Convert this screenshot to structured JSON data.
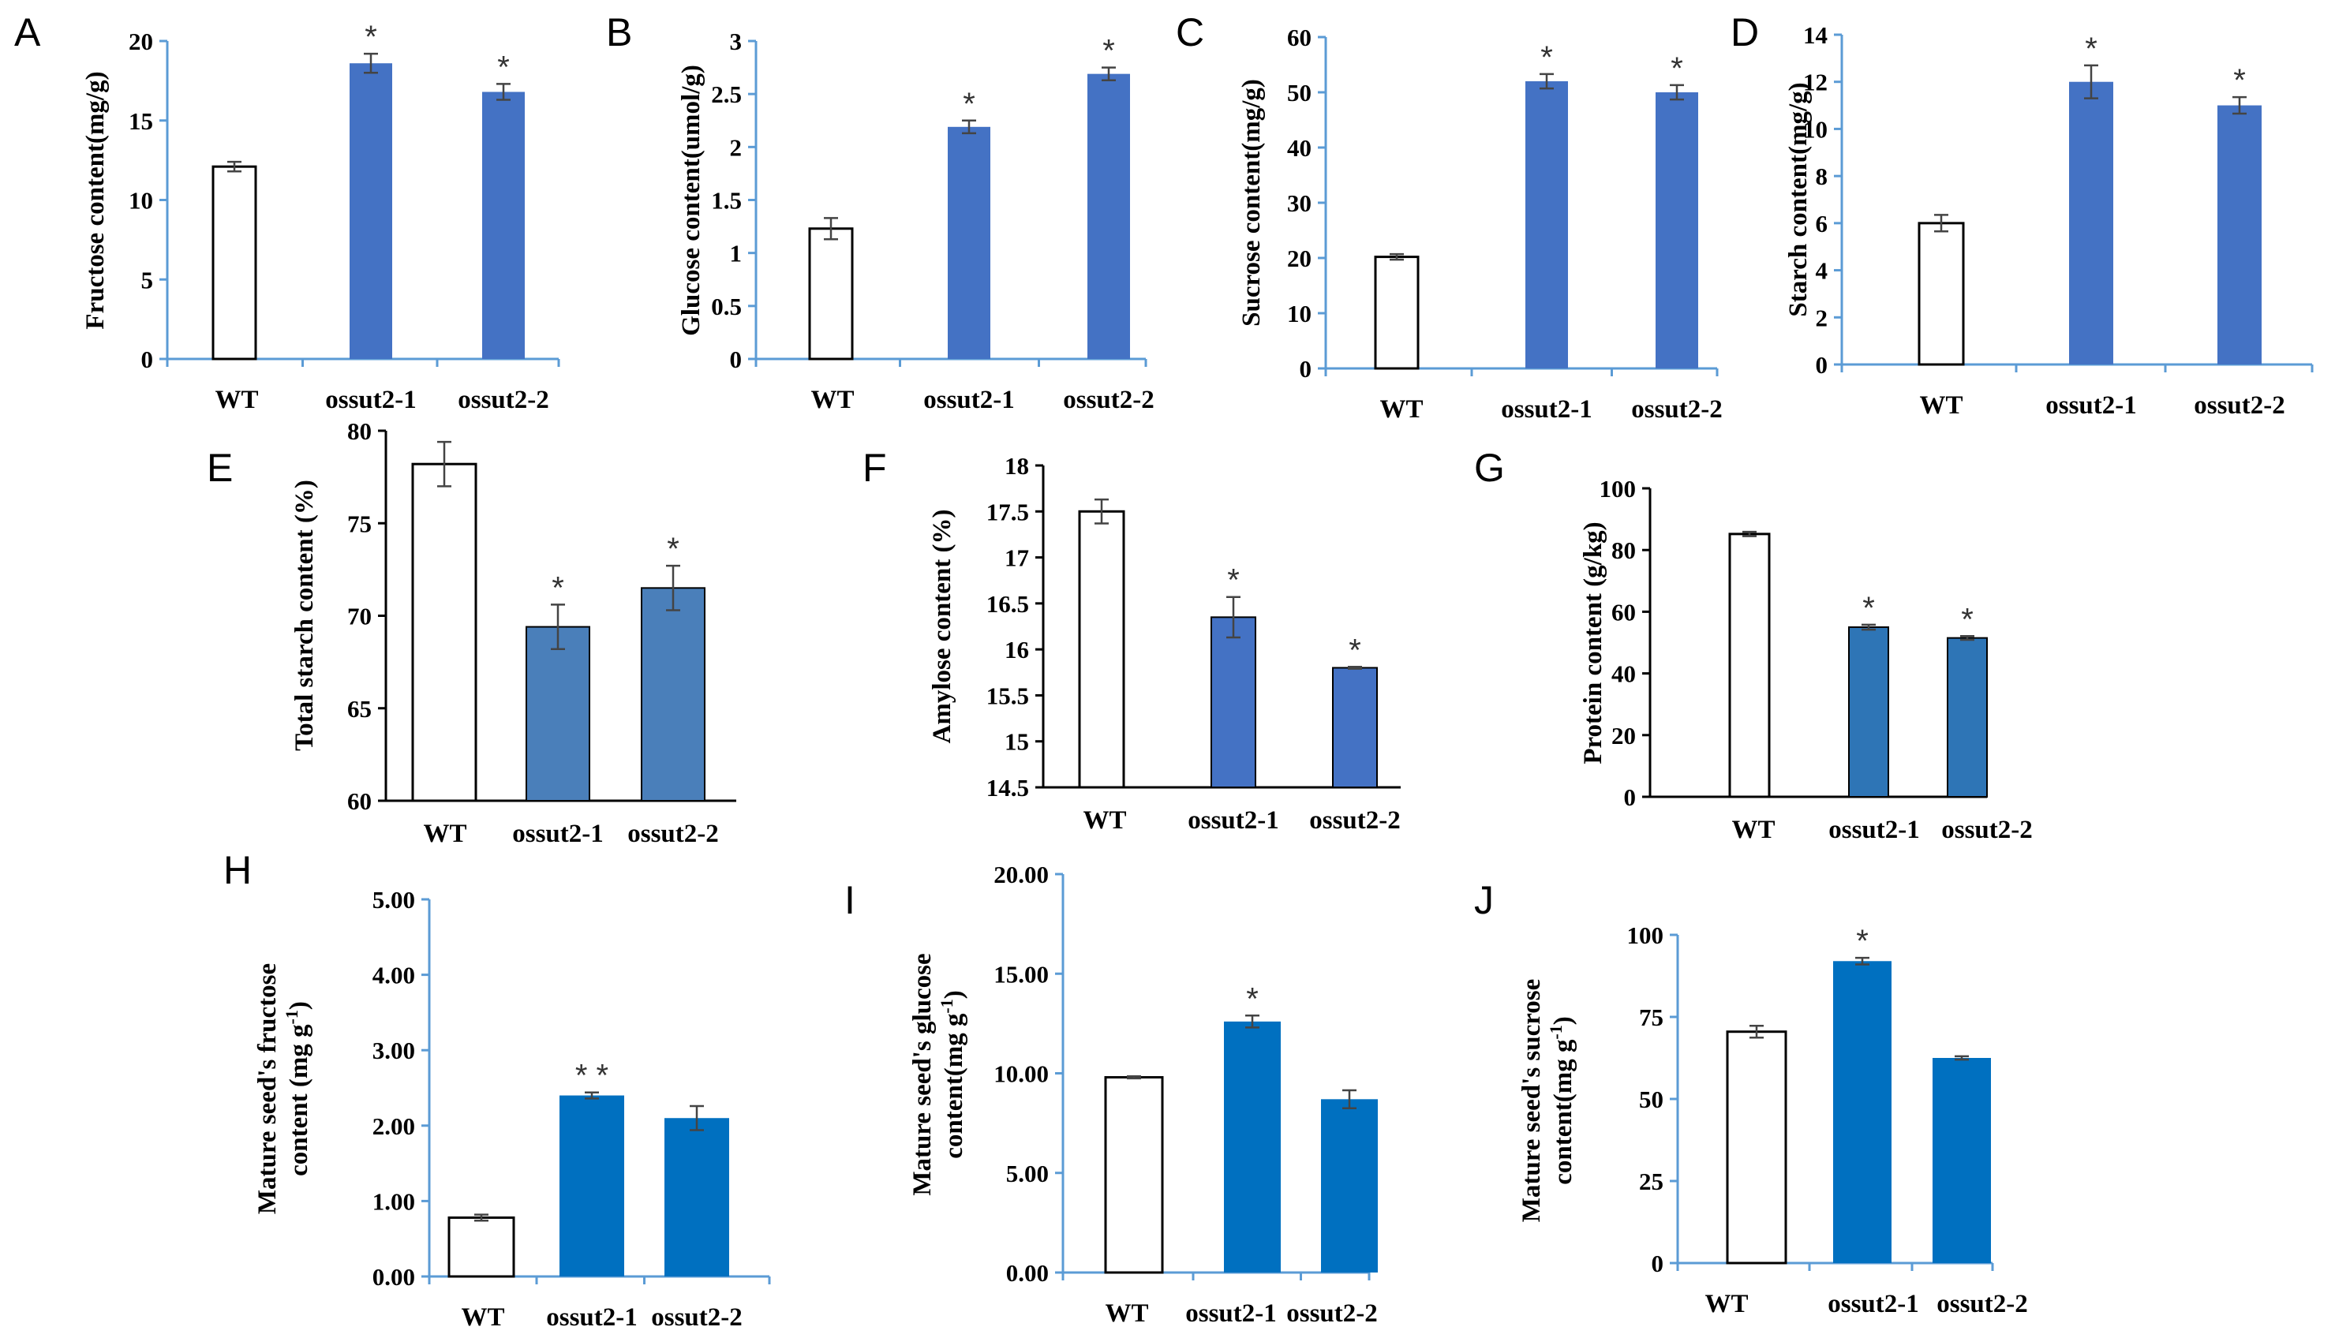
{
  "colors": {
    "wt_fill": "#ffffff",
    "mutant_fill_a": "#4472c4",
    "mutant_fill_e": "#4a7fba",
    "mutant_fill_g": "#2e75b6",
    "mutant_fill_h": "#0070c0",
    "axis_blue": "#5b9bd5",
    "axis_black": "#000000"
  },
  "chart_data": [
    {
      "panel": "A",
      "type": "bar",
      "ylabel": "Fructose content(mg/g)",
      "ylim": [
        0,
        20
      ],
      "yticks": [
        "0",
        "5",
        "10",
        "15",
        "20"
      ],
      "categories": [
        "WT",
        "ossut2-1",
        "ossut2-2"
      ],
      "values": [
        12.1,
        18.6,
        16.8
      ],
      "errors": [
        0.3,
        0.6,
        0.5
      ],
      "significance": [
        "",
        "*",
        "*"
      ]
    },
    {
      "panel": "B",
      "type": "bar",
      "ylabel": "Glucose content(umol/g)",
      "ylim": [
        0,
        3
      ],
      "yticks": [
        "0",
        "0.5",
        "1",
        "1.5",
        "2",
        "2.5",
        "3"
      ],
      "categories": [
        "WT",
        "ossut2-1",
        "ossut2-2"
      ],
      "values": [
        1.23,
        2.19,
        2.69
      ],
      "errors": [
        0.1,
        0.06,
        0.06
      ],
      "significance": [
        "",
        "*",
        "*"
      ]
    },
    {
      "panel": "C",
      "type": "bar",
      "ylabel": "Sucrose content(mg/g)",
      "ylim": [
        0,
        60
      ],
      "yticks": [
        "0",
        "10",
        "20",
        "30",
        "40",
        "50",
        "60"
      ],
      "categories": [
        "WT",
        "ossut2-1",
        "ossut2-2"
      ],
      "values": [
        20.2,
        52.0,
        50.0
      ],
      "errors": [
        0.5,
        1.3,
        1.3
      ],
      "significance": [
        "",
        "*",
        "*"
      ]
    },
    {
      "panel": "D",
      "type": "bar",
      "ylabel": "Starch content(mg/g)",
      "ylim": [
        0,
        14
      ],
      "yticks": [
        "0",
        "2",
        "4",
        "6",
        "8",
        "10",
        "12",
        "14"
      ],
      "categories": [
        "WT",
        "ossut2-1",
        "ossut2-2"
      ],
      "values": [
        6.0,
        12.0,
        11.0
      ],
      "errors": [
        0.35,
        0.7,
        0.35
      ],
      "significance": [
        "",
        "*",
        "*"
      ]
    },
    {
      "panel": "E",
      "type": "bar",
      "ylabel": "Total starch content (%)",
      "ylim": [
        60,
        80
      ],
      "yticks": [
        "60",
        "65",
        "70",
        "75",
        "80"
      ],
      "categories": [
        "WT",
        "ossut2-1",
        "ossut2-2"
      ],
      "values": [
        78.2,
        69.4,
        71.5
      ],
      "errors": [
        1.2,
        1.2,
        1.2
      ],
      "significance": [
        "",
        "*",
        "*"
      ]
    },
    {
      "panel": "F",
      "type": "bar",
      "ylabel": "Amylose content (%)",
      "ylim": [
        14.5,
        18
      ],
      "yticks": [
        "14.5",
        "15",
        "15.5",
        "16",
        "16.5",
        "17",
        "17.5",
        "18"
      ],
      "categories": [
        "WT",
        "ossut2-1",
        "ossut2-2"
      ],
      "values": [
        17.5,
        16.35,
        15.8
      ],
      "errors": [
        0.13,
        0.22,
        0.01
      ],
      "significance": [
        "",
        "*",
        "*"
      ]
    },
    {
      "panel": "G",
      "type": "bar",
      "ylabel": "Protein content (g/kg)",
      "ylim": [
        0,
        100
      ],
      "yticks": [
        "0",
        "20",
        "40",
        "60",
        "80",
        "100"
      ],
      "categories": [
        "WT",
        "ossut2-1",
        "ossut2-2"
      ],
      "values": [
        85.2,
        55.0,
        51.5
      ],
      "errors": [
        0.7,
        0.8,
        0.6
      ],
      "significance": [
        "",
        "*",
        "*"
      ]
    },
    {
      "panel": "H",
      "type": "bar",
      "ylabel": [
        "Mature seed's fructose",
        "content (mg g-1)"
      ],
      "ylim": [
        0,
        5
      ],
      "yticks": [
        "0.00",
        "1.00",
        "2.00",
        "3.00",
        "4.00",
        "5.00"
      ],
      "categories": [
        "WT",
        "ossut2-1",
        "ossut2-2"
      ],
      "values": [
        0.78,
        2.4,
        2.1
      ],
      "errors": [
        0.04,
        0.04,
        0.16
      ],
      "significance": [
        "",
        "* *",
        ""
      ]
    },
    {
      "panel": "I",
      "type": "bar",
      "ylabel": [
        "Mature seed's glucose",
        "content(mg g-1)"
      ],
      "ylim": [
        0,
        20
      ],
      "yticks": [
        "0.00",
        "5.00",
        "10.00",
        "15.00",
        "20.00"
      ],
      "categories": [
        "WT",
        "ossut2-1",
        "ossut2-2"
      ],
      "values": [
        9.8,
        12.6,
        8.7
      ],
      "errors": [
        0.05,
        0.3,
        0.45
      ],
      "significance": [
        "",
        "*",
        ""
      ]
    },
    {
      "panel": "J",
      "type": "bar",
      "ylabel": [
        "Mature seed's sucrose",
        "content(mg g-1)"
      ],
      "ylim": [
        0,
        100
      ],
      "yticks": [
        "0",
        "25",
        "50",
        "75",
        "100"
      ],
      "categories": [
        "WT",
        "ossut2-1",
        "ossut2-2"
      ],
      "values": [
        70.5,
        92.0,
        62.5
      ],
      "errors": [
        1.8,
        1.0,
        0.5
      ],
      "significance": [
        "",
        "*",
        ""
      ]
    }
  ]
}
